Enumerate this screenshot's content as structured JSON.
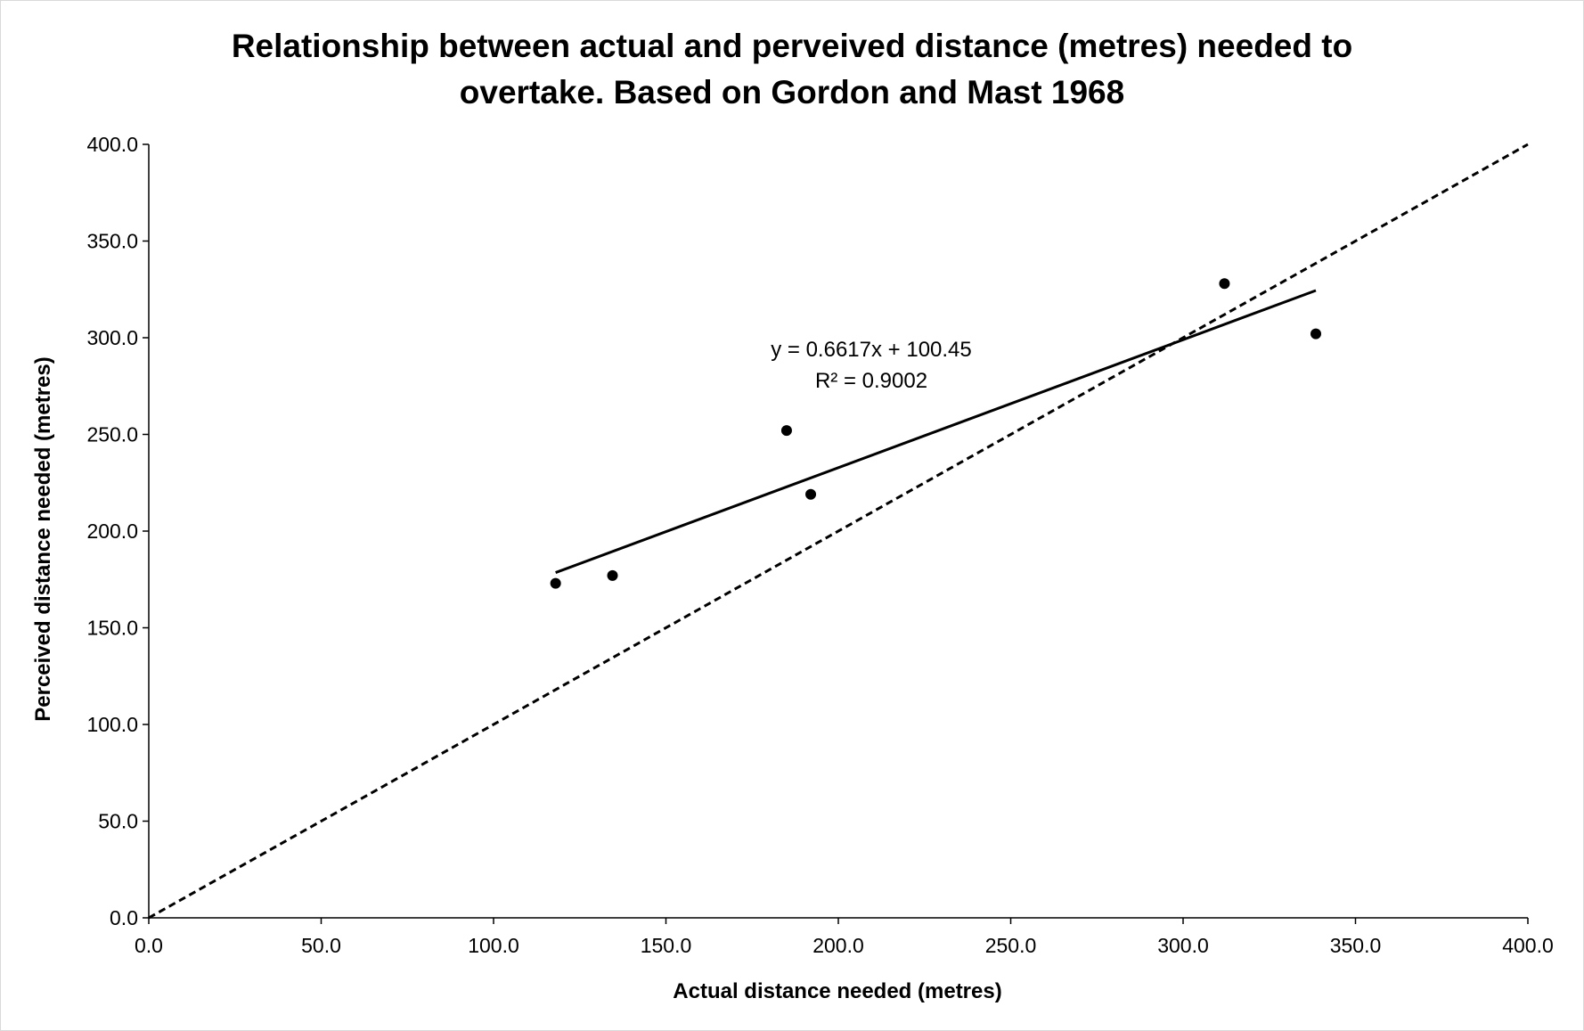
{
  "chart_data": {
    "type": "scatter",
    "title_lines": [
      "Relationship between actual and perveived distance (metres) needed to",
      "overtake. Based on Gordon and Mast 1968"
    ],
    "xlabel": "Actual distance needed (metres)",
    "ylabel": "Perceived distance needed (metres)",
    "xlim": [
      0,
      400
    ],
    "ylim": [
      0,
      400
    ],
    "x_ticks": [
      0,
      50,
      100,
      150,
      200,
      250,
      300,
      350,
      400
    ],
    "y_ticks": [
      0,
      50,
      100,
      150,
      200,
      250,
      300,
      350,
      400
    ],
    "x_tick_labels": [
      "0.0",
      "50.0",
      "100.0",
      "150.0",
      "200.0",
      "250.0",
      "300.0",
      "350.0",
      "400.0"
    ],
    "y_tick_labels": [
      "0.0",
      "50.0",
      "100.0",
      "150.0",
      "200.0",
      "250.0",
      "300.0",
      "350.0",
      "400.0"
    ],
    "grid": false,
    "legend": "none",
    "points": [
      {
        "x": 118,
        "y": 173
      },
      {
        "x": 134.5,
        "y": 177
      },
      {
        "x": 185,
        "y": 252
      },
      {
        "x": 192,
        "y": 219
      },
      {
        "x": 312,
        "y": 328
      },
      {
        "x": 338.5,
        "y": 302
      }
    ],
    "trendline": {
      "slope": 0.6617,
      "intercept": 100.45,
      "x_range": [
        118,
        338.5
      ],
      "equation_label": "y = 0.6617x + 100.45",
      "r2_label": "R² = 0.9002"
    },
    "reference_line": {
      "style": "dashed",
      "from": [
        0,
        0
      ],
      "to": [
        400,
        400
      ]
    },
    "colors": {
      "marker": "#000000",
      "lines": "#000000",
      "axis": "#000000"
    }
  }
}
